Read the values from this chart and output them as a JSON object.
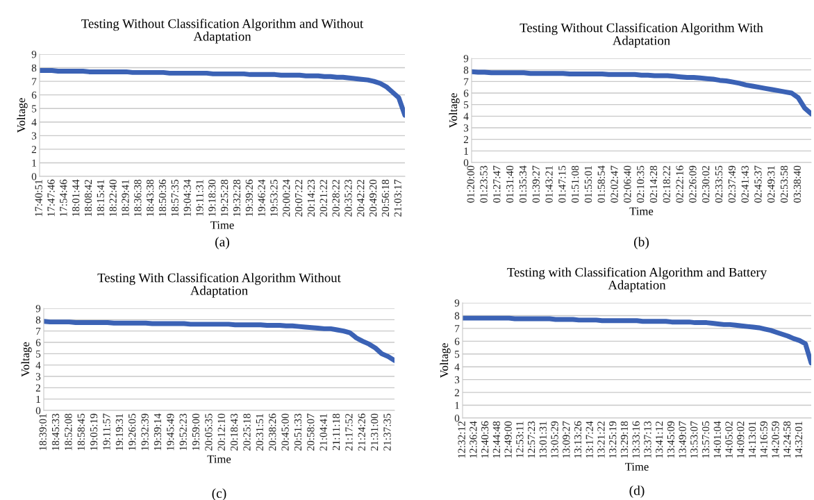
{
  "chart_data": [
    {
      "type": "line",
      "title": "Testing Without Classification Algorithm and Without\nAdaptation",
      "xlabel": "Time",
      "ylabel": "Voltage",
      "annotations": [
        "(a)"
      ],
      "ylim": [
        0,
        9
      ],
      "yticks": [
        0,
        1,
        2,
        3,
        4,
        5,
        6,
        7,
        8,
        9
      ],
      "grid": "y",
      "categories": [
        "17:40:51",
        null,
        "17:47:46",
        null,
        "17:54:46",
        null,
        "18:01:44",
        null,
        "18:08:42",
        null,
        "18:15:41",
        null,
        "18:22:40",
        null,
        "18:29:41",
        null,
        "18:36:38",
        null,
        "18:43:38",
        null,
        "18:50:36",
        null,
        "18:57:35",
        null,
        "19:04:34",
        null,
        "19:11:31",
        null,
        "19:18:30",
        null,
        "19:25:28",
        null,
        "19:32:28",
        null,
        "19:39:26",
        null,
        "19:46:24",
        null,
        "19:53:25",
        null,
        "20:00:24",
        null,
        "20:07:22",
        null,
        "20:14:23",
        null,
        "20:21:22",
        null,
        "20:28:22",
        null,
        "20:35:23",
        null,
        "20:42:22",
        null,
        "20:49:20",
        null,
        "20:56:18",
        null,
        "21:03:17",
        null
      ],
      "series": [
        {
          "color": "#3b62b5",
          "values": [
            7.8,
            7.8,
            7.8,
            7.75,
            7.75,
            7.75,
            7.75,
            7.75,
            7.7,
            7.7,
            7.7,
            7.7,
            7.7,
            7.7,
            7.7,
            7.65,
            7.65,
            7.65,
            7.65,
            7.65,
            7.65,
            7.6,
            7.6,
            7.6,
            7.6,
            7.6,
            7.6,
            7.6,
            7.55,
            7.55,
            7.55,
            7.55,
            7.55,
            7.55,
            7.5,
            7.5,
            7.5,
            7.5,
            7.5,
            7.45,
            7.45,
            7.45,
            7.45,
            7.4,
            7.4,
            7.4,
            7.35,
            7.35,
            7.3,
            7.3,
            7.25,
            7.2,
            7.15,
            7.1,
            7.0,
            6.85,
            6.6,
            6.2,
            5.8,
            4.5
          ]
        }
      ]
    },
    {
      "type": "line",
      "title": "Testing Without Classification Algorithm With\nAdaptation",
      "xlabel": "Time",
      "ylabel": "Voltage",
      "annotations": [
        "(b)"
      ],
      "ylim": [
        0,
        9
      ],
      "yticks": [
        0,
        1,
        2,
        3,
        4,
        5,
        6,
        7,
        8,
        9
      ],
      "grid": "y",
      "categories": [
        "01:20:00",
        null,
        "01:23:53",
        null,
        "01:27:47",
        null,
        "01:31:40",
        null,
        "01:35:34",
        null,
        "01:39:27",
        null,
        "01:43:21",
        null,
        "01:47:15",
        null,
        "01:51:08",
        null,
        "01:55:01",
        null,
        "01:58:54",
        null,
        "02:02:47",
        null,
        "02:06:40",
        null,
        "02:10:35",
        null,
        "02:14:28",
        null,
        "02:18:22",
        null,
        "02:22:16",
        null,
        "02:26:09",
        null,
        "02:30:02",
        null,
        "02:33:55",
        null,
        "02:37:49",
        null,
        "02:41:43",
        null,
        "02:45:37",
        null,
        "02:49:31",
        null,
        "02:53:58",
        null,
        "03:38:40",
        null,
        null
      ],
      "series": [
        {
          "color": "#3b62b5",
          "values": [
            7.85,
            7.8,
            7.8,
            7.75,
            7.75,
            7.75,
            7.75,
            7.75,
            7.75,
            7.7,
            7.7,
            7.7,
            7.7,
            7.7,
            7.7,
            7.65,
            7.65,
            7.65,
            7.65,
            7.65,
            7.65,
            7.6,
            7.6,
            7.6,
            7.6,
            7.6,
            7.55,
            7.55,
            7.5,
            7.5,
            7.5,
            7.45,
            7.4,
            7.35,
            7.35,
            7.3,
            7.25,
            7.2,
            7.1,
            7.05,
            6.95,
            6.85,
            6.7,
            6.6,
            6.5,
            6.4,
            6.3,
            6.2,
            6.1,
            6.0,
            5.6,
            4.7,
            4.2
          ]
        }
      ]
    },
    {
      "type": "line",
      "title": "Testing With Classification Algorithm Without\nAdaptation",
      "xlabel": "Time",
      "ylabel": "Voltage",
      "annotations": [
        "(c)"
      ],
      "ylim": [
        0,
        9
      ],
      "yticks": [
        0,
        1,
        2,
        3,
        4,
        5,
        6,
        7,
        8,
        9
      ],
      "grid": "y",
      "categories": [
        "18:39:01",
        null,
        "18:45:33",
        null,
        "18:52:08",
        null,
        "18:58:45",
        null,
        "19:05:19",
        null,
        "19:11:57",
        null,
        "19:19:31",
        null,
        "19:26:05",
        null,
        "19:32:39",
        null,
        "19:39:14",
        null,
        "19:45:49",
        null,
        "19:52:23",
        null,
        "19:59:00",
        null,
        "20:05:35",
        null,
        "20:12:10",
        null,
        "20:18:43",
        null,
        "20:25:18",
        null,
        "20:31:51",
        null,
        "20:38:26",
        null,
        "20:45:00",
        null,
        "20:51:33",
        null,
        "20:58:07",
        null,
        "21:04:41",
        null,
        "21:11:18",
        null,
        "21:17:52",
        null,
        "21:24:26",
        null,
        "21:31:00",
        null,
        "21:37:35",
        null
      ],
      "series": [
        {
          "color": "#3b62b5",
          "values": [
            7.85,
            7.8,
            7.8,
            7.8,
            7.8,
            7.75,
            7.75,
            7.75,
            7.75,
            7.75,
            7.75,
            7.7,
            7.7,
            7.7,
            7.7,
            7.7,
            7.7,
            7.65,
            7.65,
            7.65,
            7.65,
            7.65,
            7.65,
            7.6,
            7.6,
            7.6,
            7.6,
            7.6,
            7.6,
            7.6,
            7.55,
            7.55,
            7.55,
            7.55,
            7.55,
            7.5,
            7.5,
            7.5,
            7.45,
            7.45,
            7.4,
            7.35,
            7.3,
            7.25,
            7.2,
            7.2,
            7.1,
            7.0,
            6.85,
            6.4,
            6.1,
            5.85,
            5.5,
            5.0,
            4.75,
            4.4
          ]
        }
      ]
    },
    {
      "type": "line",
      "title": "Testing with Classification Algorithm and Battery\nAdaptation",
      "xlabel": "Time",
      "ylabel": "Voltage",
      "annotations": [
        "(d)"
      ],
      "ylim": [
        0,
        9
      ],
      "yticks": [
        0,
        1,
        2,
        3,
        4,
        5,
        6,
        7,
        8,
        9
      ],
      "grid": "y",
      "categories": [
        "12:32:12",
        null,
        "12:36:24",
        null,
        "12:40:36",
        null,
        "12:44:48",
        null,
        "12:49:00",
        null,
        "12:53:11",
        null,
        "12:57:23",
        null,
        "13:01:31",
        null,
        "13:05:29",
        null,
        "13:09:27",
        null,
        "13:13:26",
        null,
        "13:17:24",
        null,
        "13:21:22",
        null,
        "13:25:19",
        null,
        "13:29:18",
        null,
        "13:33:16",
        null,
        "13:37:13",
        null,
        "13:41:12",
        null,
        "13:45:09",
        null,
        "13:49:07",
        null,
        "13:53:07",
        null,
        "13:57:05",
        null,
        "14:01:04",
        null,
        "14:05:02",
        null,
        "14:09:02",
        null,
        "14:13:01",
        null,
        "14:16:59",
        null,
        "14:20:59",
        null,
        "14:24:58",
        null,
        "14:32:01",
        null,
        null
      ],
      "series": [
        {
          "color": "#3b62b5",
          "values": [
            7.8,
            7.8,
            7.8,
            7.8,
            7.8,
            7.8,
            7.8,
            7.8,
            7.8,
            7.75,
            7.75,
            7.75,
            7.75,
            7.75,
            7.75,
            7.75,
            7.7,
            7.7,
            7.7,
            7.7,
            7.65,
            7.65,
            7.65,
            7.65,
            7.6,
            7.6,
            7.6,
            7.6,
            7.6,
            7.6,
            7.6,
            7.55,
            7.55,
            7.55,
            7.55,
            7.55,
            7.5,
            7.5,
            7.5,
            7.5,
            7.45,
            7.45,
            7.45,
            7.4,
            7.35,
            7.3,
            7.3,
            7.25,
            7.2,
            7.15,
            7.1,
            7.05,
            6.95,
            6.85,
            6.7,
            6.55,
            6.4,
            6.2,
            6.05,
            5.8,
            4.3
          ]
        }
      ]
    }
  ]
}
